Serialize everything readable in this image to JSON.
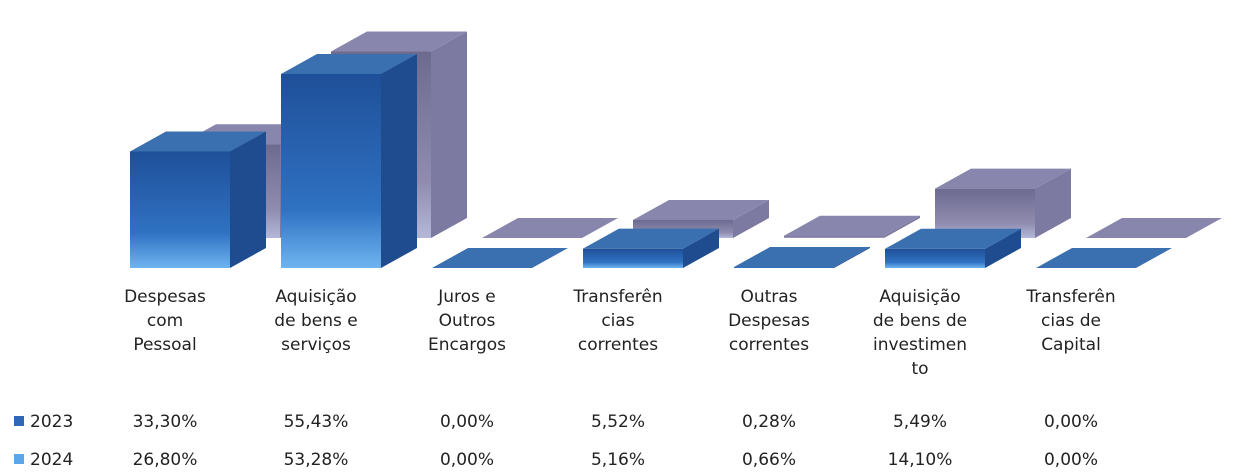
{
  "chart_data": {
    "type": "bar3d",
    "categories": [
      "Despesas\ncom\nPessoal",
      "Aquisição\nde bens e\nserviços",
      "Juros e\nOutros\nEncargos",
      "Transferên\ncias\ncorrentes",
      "Outras\nDespesas\ncorrentes",
      "Aquisição\nde bens de\ninvestimen\nto",
      "Transferên\ncias de\nCapital"
    ],
    "series": [
      {
        "name": "2023",
        "color": "#2d67b5",
        "values": [
          33.3,
          55.43,
          0.0,
          5.52,
          0.28,
          5.49,
          0.0
        ],
        "value_labels": [
          "33,30%",
          "55,43%",
          "0,00%",
          "5,52%",
          "0,28%",
          "5,49%",
          "0,00%"
        ]
      },
      {
        "name": "2024",
        "color": "#5aa6e8",
        "values": [
          26.8,
          53.28,
          0.0,
          5.16,
          0.66,
          14.1,
          0.0
        ],
        "value_labels": [
          "26,80%",
          "53,28%",
          "0,00%",
          "5,16%",
          "0,66%",
          "14,10%",
          "0,00%"
        ]
      }
    ]
  }
}
